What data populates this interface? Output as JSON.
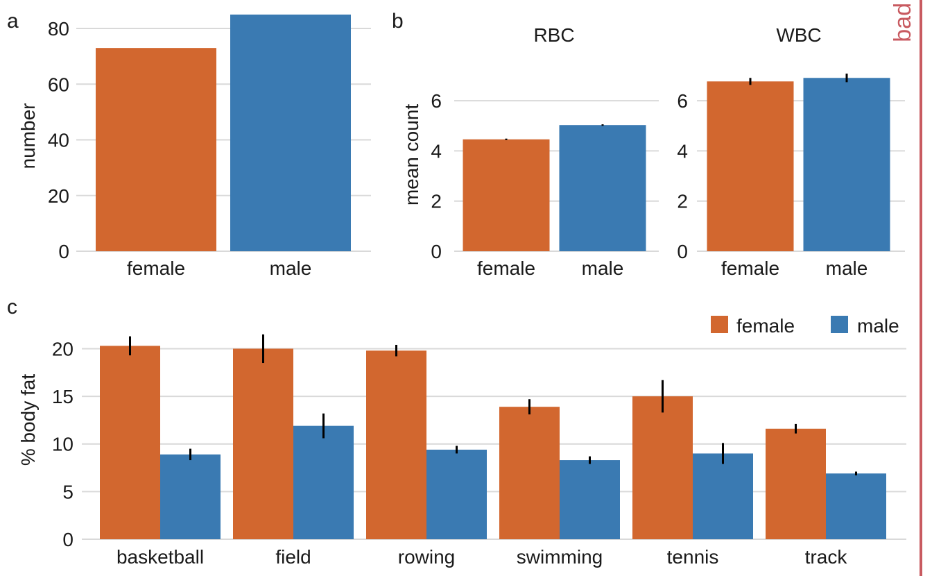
{
  "colors": {
    "female": "#d2672f",
    "male": "#3a7ab2",
    "err": "#000000",
    "bad": "#c85a60"
  },
  "stamp": "bad",
  "chart_data": [
    {
      "panel": "a",
      "type": "bar",
      "categories": [
        "female",
        "male"
      ],
      "values": [
        73,
        85
      ],
      "xlabel": "",
      "ylabel": "number",
      "ylim": [
        0,
        85
      ],
      "yticks": [
        "0",
        "20",
        "40",
        "60",
        "80"
      ],
      "grid": true
    },
    {
      "panel": "b",
      "type": "bar",
      "ylabel": "mean count",
      "ylim": [
        0,
        7
      ],
      "yticks": [
        "0",
        "2",
        "4",
        "6"
      ],
      "grid": true,
      "facets": [
        {
          "title": "RBC",
          "categories": [
            "female",
            "male"
          ],
          "values": [
            4.46,
            5.03
          ],
          "err": [
            0.03,
            0.03
          ]
        },
        {
          "title": "WBC",
          "categories": [
            "female",
            "male"
          ],
          "values": [
            6.77,
            6.91
          ],
          "err": [
            0.14,
            0.17
          ]
        }
      ]
    },
    {
      "panel": "c",
      "type": "bar",
      "categories": [
        "basketball",
        "field",
        "rowing",
        "swimming",
        "tennis",
        "track"
      ],
      "series": [
        {
          "name": "female",
          "values": [
            20.3,
            20.0,
            19.8,
            13.9,
            15.0,
            11.6
          ],
          "err": [
            1.0,
            1.5,
            0.6,
            0.8,
            1.7,
            0.5
          ]
        },
        {
          "name": "male",
          "values": [
            8.9,
            11.9,
            9.4,
            8.3,
            9.0,
            6.9
          ],
          "err": [
            0.6,
            1.3,
            0.4,
            0.4,
            1.1,
            0.2
          ]
        }
      ],
      "xlabel": "",
      "ylabel": "% body fat",
      "ylim": [
        0,
        22
      ],
      "yticks": [
        "0",
        "5",
        "10",
        "15",
        "20"
      ],
      "legend": "top-right",
      "grid": true
    }
  ]
}
